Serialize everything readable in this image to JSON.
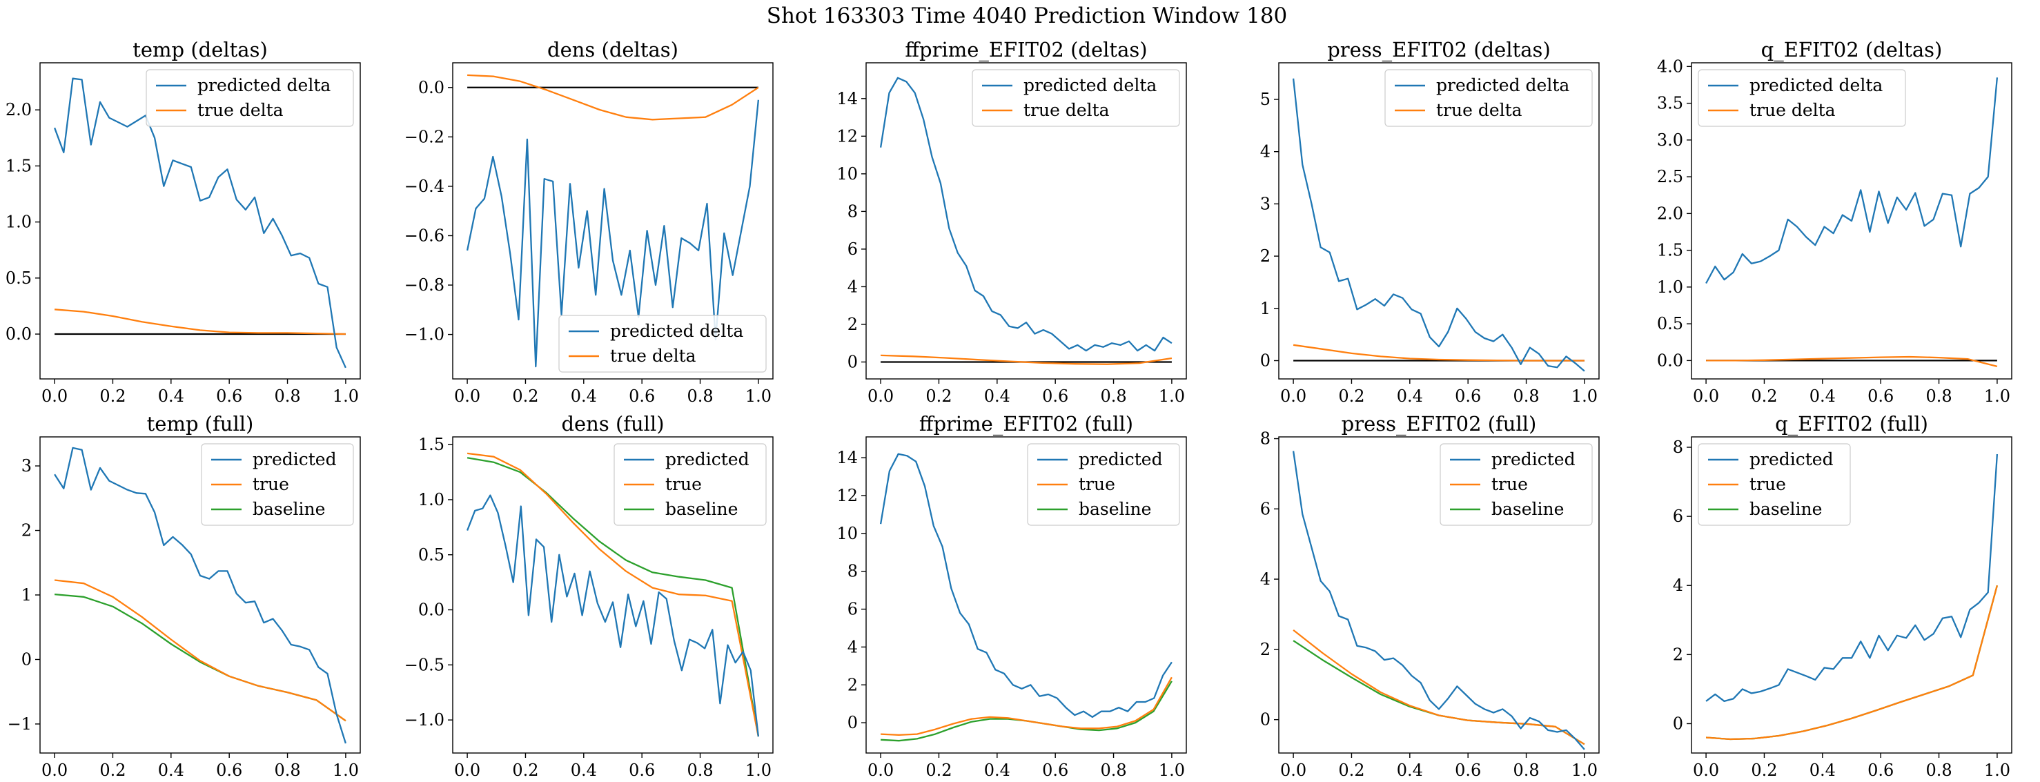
{
  "figure": {
    "title": "Shot 163303   Time 4040   Prediction Window 180"
  },
  "colors": {
    "predicted": "#1f77b4",
    "true": "#ff7f0e",
    "baseline": "#2ca02c",
    "zero_line": "#000000"
  },
  "chart_data": [
    {
      "type": "line",
      "title": "temp (deltas)",
      "xlabel": "",
      "ylabel": "",
      "xlim": [
        -0.05,
        1.05
      ],
      "ylim": [
        -0.4,
        2.42
      ],
      "xticks": [
        0.0,
        0.2,
        0.4,
        0.6,
        0.8,
        1.0
      ],
      "yticks": [
        0.0,
        0.5,
        1.0,
        1.5,
        2.0
      ],
      "legend_loc": "upper right",
      "zero_line": true,
      "series": [
        {
          "name": "predicted delta",
          "color": "#1f77b4",
          "kind": "points",
          "y": [
            1.84,
            1.62,
            2.28,
            2.27,
            1.69,
            2.07,
            1.93,
            1.89,
            1.85,
            1.9,
            1.95,
            1.75,
            1.32,
            1.55,
            1.52,
            1.49,
            1.19,
            1.22,
            1.4,
            1.47,
            1.2,
            1.11,
            1.22,
            0.9,
            1.03,
            0.88,
            0.7,
            0.72,
            0.68,
            0.45,
            0.42,
            -0.12,
            -0.3
          ]
        },
        {
          "name": "true delta",
          "color": "#ff7f0e",
          "kind": "smooth",
          "y": [
            0.22,
            0.2,
            0.16,
            0.11,
            0.07,
            0.035,
            0.015,
            0.01,
            0.01,
            0.005,
            0.0
          ]
        }
      ]
    },
    {
      "type": "line",
      "title": "dens (deltas)",
      "xlabel": "",
      "ylabel": "",
      "xlim": [
        -0.05,
        1.05
      ],
      "ylim": [
        -1.18,
        0.1
      ],
      "xticks": [
        0.0,
        0.2,
        0.4,
        0.6,
        0.8,
        1.0
      ],
      "yticks": [
        0.0,
        -0.2,
        -0.4,
        -0.6,
        -0.8,
        -1.0
      ],
      "legend_loc": "lower right",
      "zero_line": true,
      "series": [
        {
          "name": "predicted delta",
          "color": "#1f77b4",
          "kind": "points",
          "y": [
            -0.66,
            -0.49,
            -0.45,
            -0.28,
            -0.44,
            -0.67,
            -0.94,
            -0.21,
            -1.13,
            -0.37,
            -0.38,
            -0.92,
            -0.39,
            -0.73,
            -0.5,
            -0.84,
            -0.41,
            -0.7,
            -0.84,
            -0.66,
            -0.93,
            -0.58,
            -0.8,
            -0.56,
            -0.89,
            -0.61,
            -0.63,
            -0.66,
            -0.47,
            -1.02,
            -0.59,
            -0.76,
            -0.58,
            -0.4,
            -0.05
          ]
        },
        {
          "name": "true delta",
          "color": "#ff7f0e",
          "kind": "smooth",
          "y": [
            0.05,
            0.045,
            0.025,
            -0.01,
            -0.05,
            -0.09,
            -0.12,
            -0.13,
            -0.125,
            -0.12,
            -0.07,
            0.0
          ]
        }
      ]
    },
    {
      "type": "line",
      "title": "ffprime_EFIT02 (deltas)",
      "xlabel": "",
      "ylabel": "",
      "xlim": [
        -0.05,
        1.05
      ],
      "ylim": [
        -0.9,
        15.9
      ],
      "xticks": [
        0.0,
        0.2,
        0.4,
        0.6,
        0.8,
        1.0
      ],
      "yticks": [
        0,
        2,
        4,
        6,
        8,
        10,
        12,
        14
      ],
      "legend_loc": "upper right",
      "zero_line": true,
      "series": [
        {
          "name": "predicted delta",
          "color": "#1f77b4",
          "kind": "points",
          "y": [
            11.4,
            14.3,
            15.1,
            14.9,
            14.3,
            12.9,
            10.9,
            9.5,
            7.1,
            5.8,
            5.1,
            3.8,
            3.5,
            2.7,
            2.5,
            1.9,
            1.8,
            2.1,
            1.5,
            1.7,
            1.5,
            1.1,
            0.7,
            0.9,
            0.6,
            0.9,
            0.8,
            1.0,
            0.9,
            1.1,
            0.6,
            0.9,
            0.6,
            1.3,
            1.0
          ]
        },
        {
          "name": "true delta",
          "color": "#ff7f0e",
          "kind": "smooth",
          "y": [
            0.35,
            0.3,
            0.22,
            0.12,
            0.03,
            -0.05,
            -0.1,
            -0.12,
            -0.06,
            0.2
          ]
        }
      ]
    },
    {
      "type": "line",
      "title": "press_EFIT02 (deltas)",
      "xlabel": "",
      "ylabel": "",
      "xlim": [
        -0.05,
        1.05
      ],
      "ylim": [
        -0.35,
        5.7
      ],
      "xticks": [
        0.0,
        0.2,
        0.4,
        0.6,
        0.8,
        1.0
      ],
      "yticks": [
        0,
        1,
        2,
        3,
        4,
        5
      ],
      "legend_loc": "upper right",
      "zero_line": true,
      "series": [
        {
          "name": "predicted delta",
          "color": "#1f77b4",
          "kind": "points",
          "y": [
            5.4,
            3.75,
            3.0,
            2.17,
            2.07,
            1.52,
            1.57,
            0.98,
            1.07,
            1.18,
            1.05,
            1.27,
            1.2,
            0.98,
            0.9,
            0.45,
            0.27,
            0.55,
            1.0,
            0.8,
            0.55,
            0.43,
            0.37,
            0.5,
            0.25,
            -0.07,
            0.25,
            0.13,
            -0.1,
            -0.13,
            0.08,
            -0.05,
            -0.2
          ]
        },
        {
          "name": "true delta",
          "color": "#ff7f0e",
          "kind": "smooth",
          "y": [
            0.3,
            0.22,
            0.14,
            0.08,
            0.04,
            0.02,
            0.01,
            0.005,
            0.0,
            0.0,
            0.0
          ]
        }
      ]
    },
    {
      "type": "line",
      "title": "q_EFIT02 (deltas)",
      "xlabel": "",
      "ylabel": "",
      "xlim": [
        -0.05,
        1.05
      ],
      "ylim": [
        -0.25,
        4.05
      ],
      "xticks": [
        0.0,
        0.2,
        0.4,
        0.6,
        0.8,
        1.0
      ],
      "yticks": [
        0.0,
        0.5,
        1.0,
        1.5,
        2.0,
        2.5,
        3.0,
        3.5,
        4.0
      ],
      "legend_loc": "upper left",
      "zero_line": true,
      "series": [
        {
          "name": "predicted delta",
          "color": "#1f77b4",
          "kind": "points",
          "y": [
            1.05,
            1.28,
            1.1,
            1.2,
            1.45,
            1.32,
            1.35,
            1.42,
            1.5,
            1.92,
            1.82,
            1.68,
            1.57,
            1.82,
            1.73,
            1.98,
            1.9,
            2.32,
            1.75,
            2.3,
            1.87,
            2.22,
            2.05,
            2.28,
            1.83,
            1.92,
            2.27,
            2.25,
            1.55,
            2.27,
            2.35,
            2.5,
            3.85
          ]
        },
        {
          "name": "true delta",
          "color": "#ff7f0e",
          "kind": "smooth",
          "y": [
            0.0,
            0.0,
            0.005,
            0.015,
            0.025,
            0.035,
            0.045,
            0.05,
            0.04,
            0.02,
            -0.08
          ]
        }
      ]
    },
    {
      "type": "line",
      "title": "temp (full)",
      "xlabel": "",
      "ylabel": "",
      "xlim": [
        -0.05,
        1.05
      ],
      "ylim": [
        -1.45,
        3.45
      ],
      "xticks": [
        0.0,
        0.2,
        0.4,
        0.6,
        0.8,
        1.0
      ],
      "yticks": [
        -1,
        0,
        1,
        2,
        3
      ],
      "legend_loc": "upper right",
      "zero_line": false,
      "series": [
        {
          "name": "predicted",
          "color": "#1f77b4",
          "kind": "points",
          "y": [
            2.87,
            2.65,
            3.28,
            3.25,
            2.63,
            2.97,
            2.77,
            2.7,
            2.63,
            2.58,
            2.57,
            2.28,
            1.77,
            1.9,
            1.78,
            1.63,
            1.3,
            1.25,
            1.37,
            1.37,
            1.02,
            0.88,
            0.9,
            0.57,
            0.63,
            0.45,
            0.23,
            0.2,
            0.15,
            -0.12,
            -0.22,
            -0.85,
            -1.3
          ]
        },
        {
          "name": "true",
          "color": "#ff7f0e",
          "kind": "smooth",
          "y": [
            1.23,
            1.18,
            0.97,
            0.66,
            0.31,
            -0.02,
            -0.26,
            -0.41,
            -0.51,
            -0.63,
            -0.95
          ]
        },
        {
          "name": "baseline",
          "color": "#2ca02c",
          "kind": "smooth",
          "y": [
            1.01,
            0.97,
            0.82,
            0.56,
            0.24,
            -0.04,
            -0.26,
            -0.41,
            -0.51,
            -0.63,
            -0.95
          ]
        }
      ]
    },
    {
      "type": "line",
      "title": "dens (full)",
      "xlabel": "",
      "ylabel": "",
      "xlim": [
        -0.05,
        1.05
      ],
      "ylim": [
        -1.3,
        1.57
      ],
      "xticks": [
        0.0,
        0.2,
        0.4,
        0.6,
        0.8,
        1.0
      ],
      "yticks": [
        1.5,
        1.0,
        0.5,
        0.0,
        -0.5,
        -1.0
      ],
      "legend_loc": "upper right",
      "zero_line": false,
      "series": [
        {
          "name": "predicted",
          "color": "#1f77b4",
          "kind": "points",
          "y": [
            0.72,
            0.9,
            0.92,
            1.04,
            0.88,
            0.58,
            0.25,
            0.94,
            -0.05,
            0.64,
            0.57,
            -0.11,
            0.5,
            0.12,
            0.33,
            -0.05,
            0.35,
            0.06,
            -0.11,
            0.07,
            -0.34,
            0.14,
            -0.15,
            0.08,
            -0.31,
            0.16,
            0.1,
            -0.28,
            -0.55,
            -0.27,
            -0.3,
            -0.35,
            -0.18,
            -0.85,
            -0.32,
            -0.48,
            -0.38,
            -0.55,
            -1.15
          ]
        },
        {
          "name": "true",
          "color": "#ff7f0e",
          "kind": "smooth",
          "y": [
            1.42,
            1.39,
            1.27,
            1.05,
            0.79,
            0.55,
            0.35,
            0.2,
            0.14,
            0.13,
            0.08,
            -1.15
          ]
        },
        {
          "name": "baseline",
          "color": "#2ca02c",
          "kind": "smooth",
          "y": [
            1.38,
            1.34,
            1.25,
            1.06,
            0.83,
            0.62,
            0.45,
            0.34,
            0.3,
            0.27,
            0.2,
            -1.15
          ]
        }
      ]
    },
    {
      "type": "line",
      "title": "ffprime_EFIT02 (full)",
      "xlabel": "",
      "ylabel": "",
      "xlim": [
        -0.05,
        1.05
      ],
      "ylim": [
        -1.6,
        15.1
      ],
      "xticks": [
        0.0,
        0.2,
        0.4,
        0.6,
        0.8,
        1.0
      ],
      "yticks": [
        0,
        2,
        4,
        6,
        8,
        10,
        12,
        14
      ],
      "legend_loc": "upper right",
      "zero_line": false,
      "series": [
        {
          "name": "predicted",
          "color": "#1f77b4",
          "kind": "points",
          "y": [
            10.5,
            13.3,
            14.2,
            14.1,
            13.8,
            12.5,
            10.4,
            9.3,
            7.1,
            5.8,
            5.2,
            3.9,
            3.7,
            2.8,
            2.6,
            2.0,
            1.8,
            2.0,
            1.4,
            1.5,
            1.3,
            0.8,
            0.4,
            0.6,
            0.3,
            0.6,
            0.6,
            0.8,
            0.6,
            1.1,
            1.1,
            1.3,
            2.5,
            3.2
          ]
        },
        {
          "name": "true",
          "color": "#ff7f0e",
          "kind": "smooth",
          "y": [
            -0.6,
            -0.65,
            -0.6,
            -0.35,
            -0.05,
            0.2,
            0.3,
            0.25,
            0.1,
            -0.05,
            -0.2,
            -0.3,
            -0.3,
            -0.2,
            0.1,
            0.7,
            2.4
          ]
        },
        {
          "name": "baseline",
          "color": "#2ca02c",
          "kind": "smooth",
          "y": [
            -0.9,
            -0.95,
            -0.85,
            -0.6,
            -0.25,
            0.05,
            0.2,
            0.2,
            0.1,
            -0.05,
            -0.2,
            -0.35,
            -0.4,
            -0.3,
            0.0,
            0.6,
            2.2
          ]
        }
      ]
    },
    {
      "type": "line",
      "title": "press_EFIT02 (full)",
      "xlabel": "",
      "ylabel": "",
      "xlim": [
        -0.05,
        1.05
      ],
      "ylim": [
        -0.95,
        8.05
      ],
      "xticks": [
        0.0,
        0.2,
        0.4,
        0.6,
        0.8,
        1.0
      ],
      "yticks": [
        0,
        2,
        4,
        6,
        8
      ],
      "legend_loc": "upper right",
      "zero_line": false,
      "series": [
        {
          "name": "predicted",
          "color": "#1f77b4",
          "kind": "points",
          "y": [
            7.65,
            5.85,
            4.9,
            3.95,
            3.65,
            2.95,
            2.85,
            2.1,
            2.05,
            1.95,
            1.7,
            1.75,
            1.55,
            1.25,
            1.05,
            0.55,
            0.3,
            0.6,
            0.95,
            0.7,
            0.45,
            0.3,
            0.2,
            0.3,
            0.1,
            -0.25,
            0.05,
            -0.05,
            -0.3,
            -0.35,
            -0.3,
            -0.55,
            -0.85
          ]
        },
        {
          "name": "true",
          "color": "#ff7f0e",
          "kind": "smooth",
          "y": [
            2.55,
            1.9,
            1.3,
            0.78,
            0.4,
            0.12,
            -0.02,
            -0.08,
            -0.12,
            -0.2,
            -0.7
          ]
        },
        {
          "name": "baseline",
          "color": "#2ca02c",
          "kind": "smooth",
          "y": [
            2.25,
            1.7,
            1.2,
            0.72,
            0.37,
            0.12,
            -0.02,
            -0.08,
            -0.12,
            -0.2,
            -0.7
          ]
        }
      ]
    },
    {
      "type": "line",
      "title": "q_EFIT02 (full)",
      "xlabel": "",
      "ylabel": "",
      "xlim": [
        -0.05,
        1.05
      ],
      "ylim": [
        -0.85,
        8.3
      ],
      "xticks": [
        0.0,
        0.2,
        0.4,
        0.6,
        0.8,
        1.0
      ],
      "yticks": [
        0,
        2,
        4,
        6,
        8
      ],
      "legend_loc": "upper left",
      "zero_line": false,
      "series": [
        {
          "name": "predicted",
          "color": "#1f77b4",
          "kind": "points",
          "y": [
            0.65,
            0.85,
            0.65,
            0.72,
            1.0,
            0.88,
            0.93,
            1.02,
            1.12,
            1.58,
            1.48,
            1.38,
            1.27,
            1.62,
            1.58,
            1.9,
            1.9,
            2.38,
            1.9,
            2.55,
            2.12,
            2.55,
            2.48,
            2.85,
            2.42,
            2.6,
            3.05,
            3.1,
            2.5,
            3.3,
            3.5,
            3.8,
            7.8
          ]
        },
        {
          "name": "true",
          "color": "#ff7f0e",
          "kind": "smooth",
          "y": [
            -0.4,
            -0.45,
            -0.43,
            -0.35,
            -0.22,
            -0.05,
            0.15,
            0.38,
            0.62,
            0.85,
            1.08,
            1.4,
            4.0
          ]
        },
        {
          "name": "baseline",
          "color": "#2ca02c",
          "kind": "smooth",
          "y": [
            -0.4,
            -0.45,
            -0.43,
            -0.35,
            -0.22,
            -0.05,
            0.15,
            0.38,
            0.62,
            0.85,
            1.08,
            1.4,
            4.0
          ]
        }
      ]
    }
  ]
}
